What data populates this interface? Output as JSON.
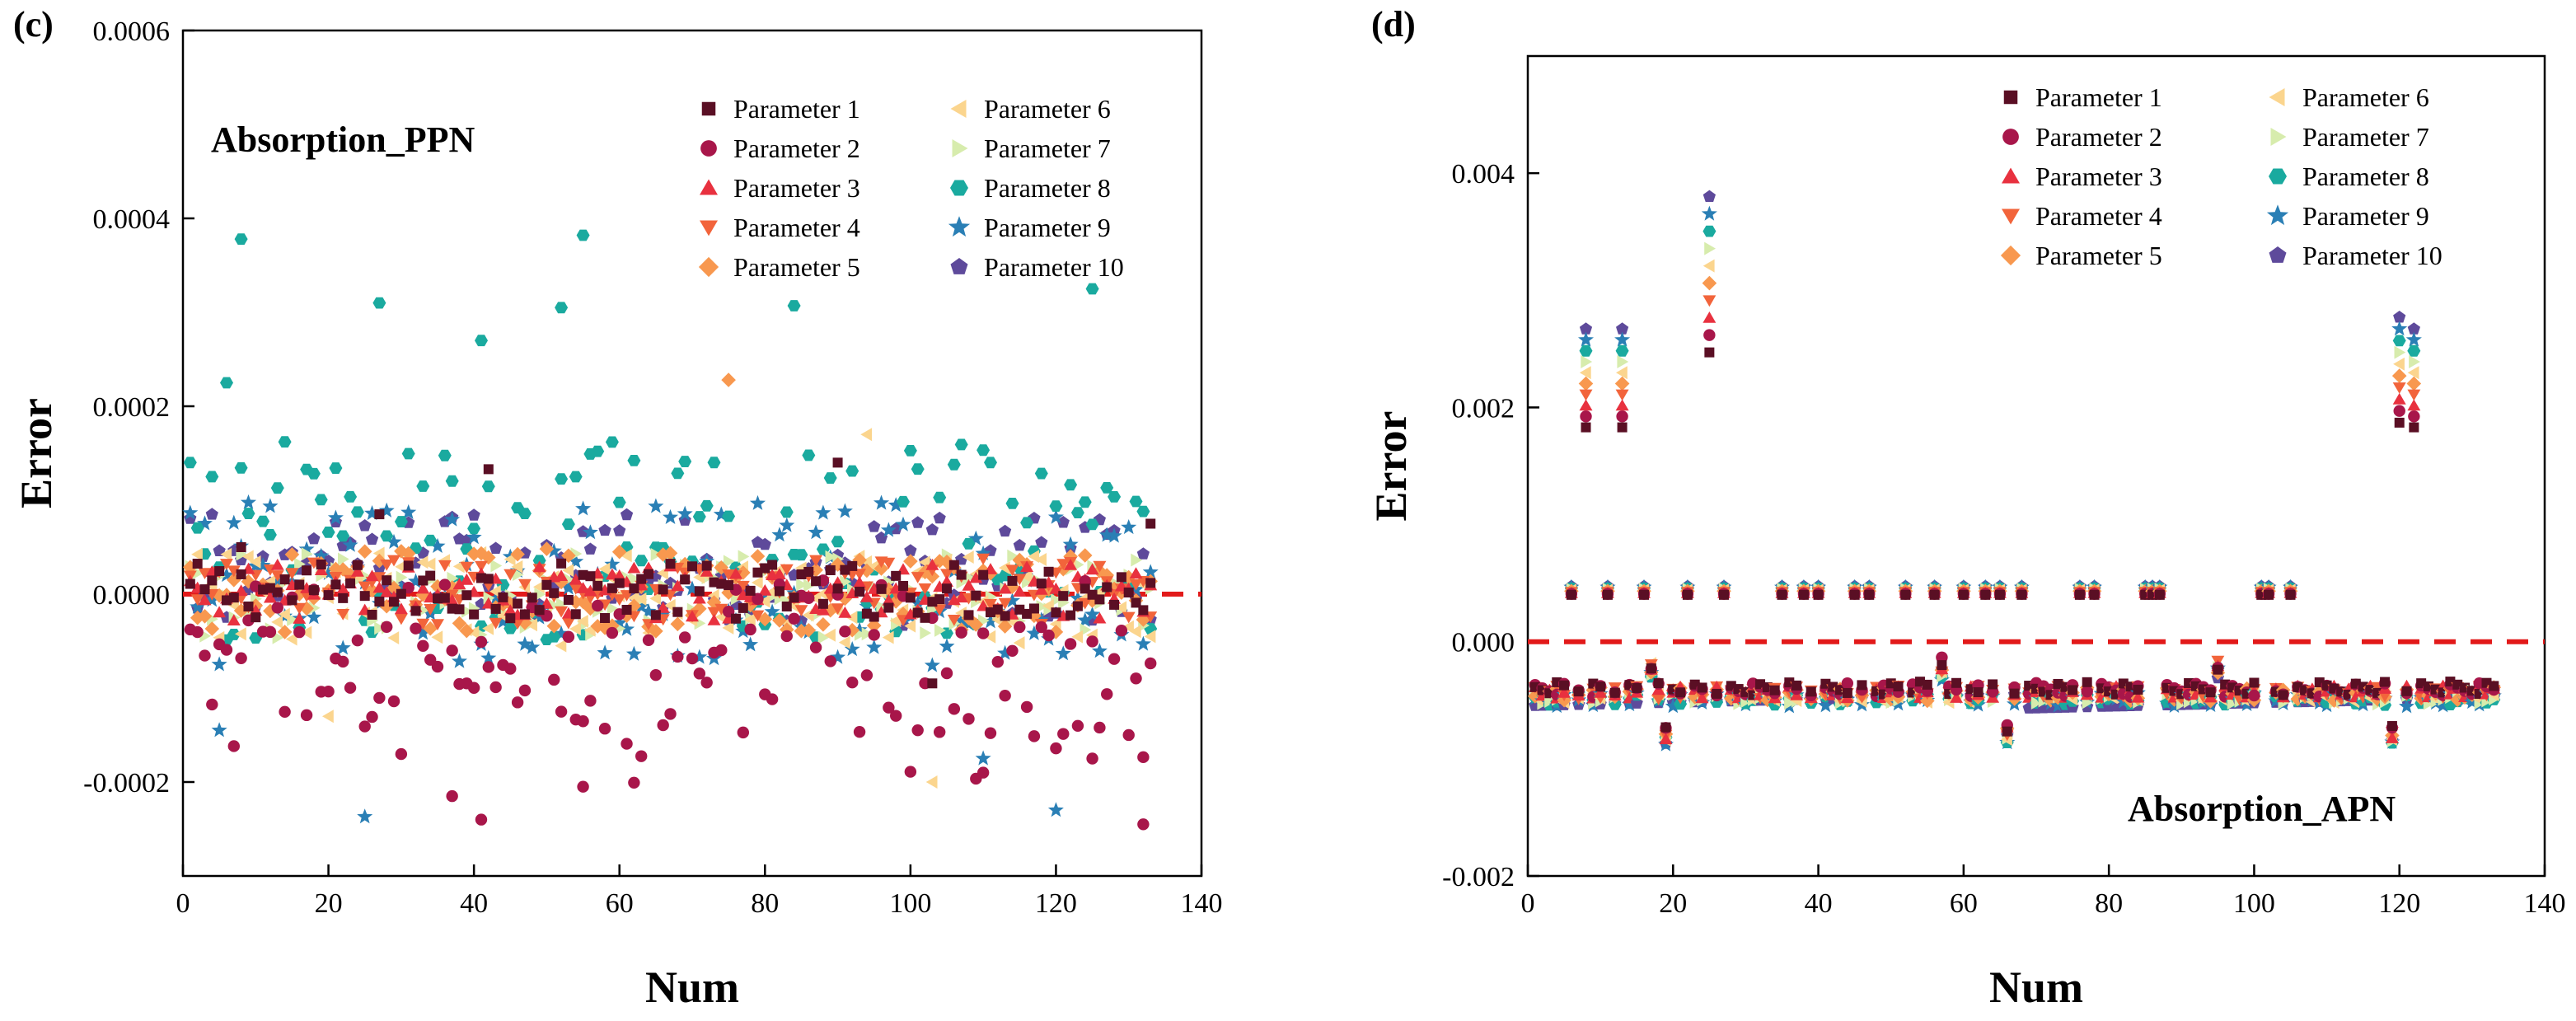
{
  "chart_data": [
    {
      "type": "scatter",
      "panel_label": "(c)",
      "title": "Absorption_PPN",
      "xlabel": "Num",
      "ylabel": "Error",
      "xlim": [
        0,
        140
      ],
      "ylim": [
        -0.0003,
        0.0006
      ],
      "xticks": [
        0,
        20,
        40,
        60,
        80,
        100,
        120,
        140
      ],
      "xtick_labels": [
        "0",
        "20",
        "40",
        "60",
        "80",
        "100",
        "120",
        "140"
      ],
      "yticks": [
        -0.0002,
        0.0,
        0.0002,
        0.0004,
        0.0006
      ],
      "ytick_labels": [
        "-0.0002",
        "0.0000",
        "0.0002",
        "0.0004",
        "0.0006"
      ],
      "grid": false,
      "legend_position": "top-right",
      "reference_line": 0,
      "num_points": 133,
      "series": [
        {
          "name": "Parameter 1",
          "amp": 3e-05,
          "offset": 3.5e-06,
          "spikes": [
            {
              "x": 8,
              "y": 5e-05
            },
            {
              "x": 27,
              "y": 8.5e-05
            },
            {
              "x": 42,
              "y": 0.000133
            },
            {
              "x": 90,
              "y": 0.00014
            },
            {
              "x": 103,
              "y": -9.5e-05
            },
            {
              "x": 133,
              "y": 7.5e-05
            }
          ]
        },
        {
          "name": "Parameter 2",
          "amp": 8.5e-05,
          "offset": -6.5e-05,
          "spikes": [
            {
              "x": 37,
              "y": -0.000215
            },
            {
              "x": 41,
              "y": -0.00024
            },
            {
              "x": 55,
              "y": -0.000205
            },
            {
              "x": 110,
              "y": -0.00019
            },
            {
              "x": 125,
              "y": -0.000175
            },
            {
              "x": 132,
              "y": -0.000245
            }
          ]
        },
        {
          "name": "Parameter 3",
          "amp": 3e-05,
          "offset": 2e-06,
          "spikes": []
        },
        {
          "name": "Parameter 4",
          "amp": 3.5e-05,
          "offset": 3e-06,
          "spikes": []
        },
        {
          "name": "Parameter 5",
          "amp": 4.5e-05,
          "offset": 4e-06,
          "spikes": [
            {
              "x": 75,
              "y": 0.000228
            }
          ]
        },
        {
          "name": "Parameter 6",
          "amp": 5e-05,
          "offset": -5e-06,
          "spikes": [
            {
              "x": 94,
              "y": 0.00017
            },
            {
              "x": 103,
              "y": -0.0002
            },
            {
              "x": 20,
              "y": -0.00013
            }
          ]
        },
        {
          "name": "Parameter 7",
          "amp": 4.5e-05,
          "offset": -2e-06,
          "spikes": []
        },
        {
          "name": "Parameter 8",
          "amp": 0.00011,
          "offset": 5.5e-05,
          "spikes": [
            {
              "x": 8,
              "y": 0.000378
            },
            {
              "x": 27,
              "y": 0.00031
            },
            {
              "x": 55,
              "y": 0.000382
            },
            {
              "x": 52,
              "y": 0.000305
            },
            {
              "x": 84,
              "y": 0.000307
            },
            {
              "x": 125,
              "y": 0.000325
            },
            {
              "x": 6,
              "y": 0.000225
            },
            {
              "x": 41,
              "y": 0.00027
            }
          ]
        },
        {
          "name": "Parameter 9",
          "amp": 9e-05,
          "offset": 1e-05,
          "spikes": [
            {
              "x": 25,
              "y": -0.000237
            },
            {
              "x": 120,
              "y": -0.00023
            },
            {
              "x": 110,
              "y": -0.000175
            },
            {
              "x": 5,
              "y": -0.000145
            }
          ]
        },
        {
          "name": "Parameter 10",
          "amp": 6e-05,
          "offset": 2.5e-05,
          "spikes": []
        }
      ]
    },
    {
      "type": "scatter",
      "panel_label": "(d)",
      "title": "Absorption_APN",
      "xlabel": "Num",
      "ylabel": "Error",
      "xlim": [
        0,
        140
      ],
      "ylim": [
        -0.002,
        0.005
      ],
      "xticks": [
        0,
        20,
        40,
        60,
        80,
        100,
        120,
        140
      ],
      "xtick_labels": [
        "0",
        "20",
        "40",
        "60",
        "80",
        "100",
        "120",
        "140"
      ],
      "yticks": [
        -0.002,
        0.0,
        0.002,
        0.004
      ],
      "ytick_labels": [
        "-0.002",
        "0.000",
        "0.002",
        "0.004"
      ],
      "grid": false,
      "legend_position": "top-right",
      "reference_line": 0,
      "num_points": 133,
      "high_points": [
        {
          "x": 8,
          "base": 0.00183,
          "top": 0.00267
        },
        {
          "x": 13,
          "base": 0.00183,
          "top": 0.00267
        },
        {
          "x": 25,
          "base": 0.00247,
          "top": 0.0038
        },
        {
          "x": 120,
          "base": 0.00187,
          "top": 0.00277
        },
        {
          "x": 122,
          "base": 0.00183,
          "top": 0.00267
        }
      ],
      "mid_points": [
        6,
        11,
        16,
        22,
        27,
        35,
        38,
        40,
        45,
        47,
        52,
        56,
        60,
        63,
        65,
        68,
        76,
        78,
        85,
        86,
        87,
        101,
        102,
        105
      ],
      "mid_value": 0.0004,
      "low_value": -0.0004,
      "series": [
        {
          "name": "Parameter 1"
        },
        {
          "name": "Parameter 2"
        },
        {
          "name": "Parameter 3"
        },
        {
          "name": "Parameter 4"
        },
        {
          "name": "Parameter 5"
        },
        {
          "name": "Parameter 6"
        },
        {
          "name": "Parameter 7"
        },
        {
          "name": "Parameter 8"
        },
        {
          "name": "Parameter 9"
        },
        {
          "name": "Parameter 10"
        }
      ]
    }
  ],
  "colors": {
    "series": [
      "#5a0f24",
      "#a8164a",
      "#e8313f",
      "#f2643b",
      "#f8984f",
      "#fbd58e",
      "#d7ecad",
      "#1aaa9f",
      "#2a7fb5",
      "#5e4a9b"
    ],
    "reference_line": "#e21a1a",
    "axis": "#000000"
  }
}
